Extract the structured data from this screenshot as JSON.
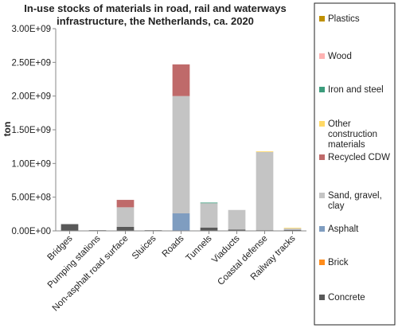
{
  "chart_data": {
    "type": "bar",
    "stacked": true,
    "title": [
      "In-use stocks of materials in road, rail and waterways",
      "infrastructure, the Netherlands, ca. 2020"
    ],
    "ylabel": "ton",
    "xlabel": "",
    "ylim": [
      0,
      3000000000
    ],
    "yticks": [
      0,
      500000000,
      1000000000,
      1500000000,
      2000000000,
      2500000000,
      3000000000
    ],
    "ytick_labels": [
      "0.00E+00",
      "5.00E+08",
      "1.00E+09",
      "1.50E+09",
      "2.00E+09",
      "2.50E+09",
      "3.00E+09"
    ],
    "grid": false,
    "legend_position": "right",
    "categories": [
      "Bridges",
      "Pumping stations",
      "Non-asphalt road surface",
      "Sluices",
      "Roads",
      "Tunnels",
      "Viaducts",
      "Coastal defense",
      "Railway tracks"
    ],
    "series": [
      {
        "name": "Concrete",
        "color": "#595959",
        "values": [
          100000000,
          3000000,
          60000000,
          5000000,
          0,
          50000000,
          20000000,
          10000000,
          15000000
        ]
      },
      {
        "name": "Brick",
        "color": "#ff8c1a",
        "values": [
          0,
          0,
          0,
          0,
          0,
          0,
          0,
          0,
          0
        ]
      },
      {
        "name": "Asphalt",
        "color": "#7f9dc0",
        "values": [
          0,
          0,
          0,
          0,
          260000000,
          0,
          0,
          0,
          0
        ]
      },
      {
        "name": "Sand, gravel, clay",
        "color": "#c4c4c4",
        "values": [
          0,
          0,
          290000000,
          0,
          1740000000,
          360000000,
          290000000,
          1160000000,
          20000000
        ]
      },
      {
        "name": "Recycled CDW",
        "color": "#bf6a6a",
        "values": [
          0,
          0,
          110000000,
          0,
          470000000,
          0,
          0,
          0,
          0
        ]
      },
      {
        "name": "Other construction materials",
        "color": "#ffd966",
        "values": [
          0,
          0,
          0,
          0,
          0,
          0,
          0,
          10000000,
          10000000
        ]
      },
      {
        "name": "Iron and steel",
        "color": "#3c9c7c",
        "values": [
          0,
          0,
          0,
          0,
          0,
          10000000,
          0,
          0,
          0
        ]
      },
      {
        "name": "Wood",
        "color": "#ffb3b3",
        "values": [
          0,
          0,
          0,
          0,
          0,
          0,
          0,
          0,
          0
        ]
      },
      {
        "name": "Plastics",
        "color": "#bf9000",
        "values": [
          0,
          0,
          0,
          0,
          0,
          0,
          0,
          0,
          0
        ]
      }
    ],
    "legend_order": [
      "Plastics",
      "Wood",
      "Iron and steel",
      "Other construction materials",
      "Recycled CDW",
      "Sand, gravel, clay",
      "Asphalt",
      "Brick",
      "Concrete"
    ]
  }
}
